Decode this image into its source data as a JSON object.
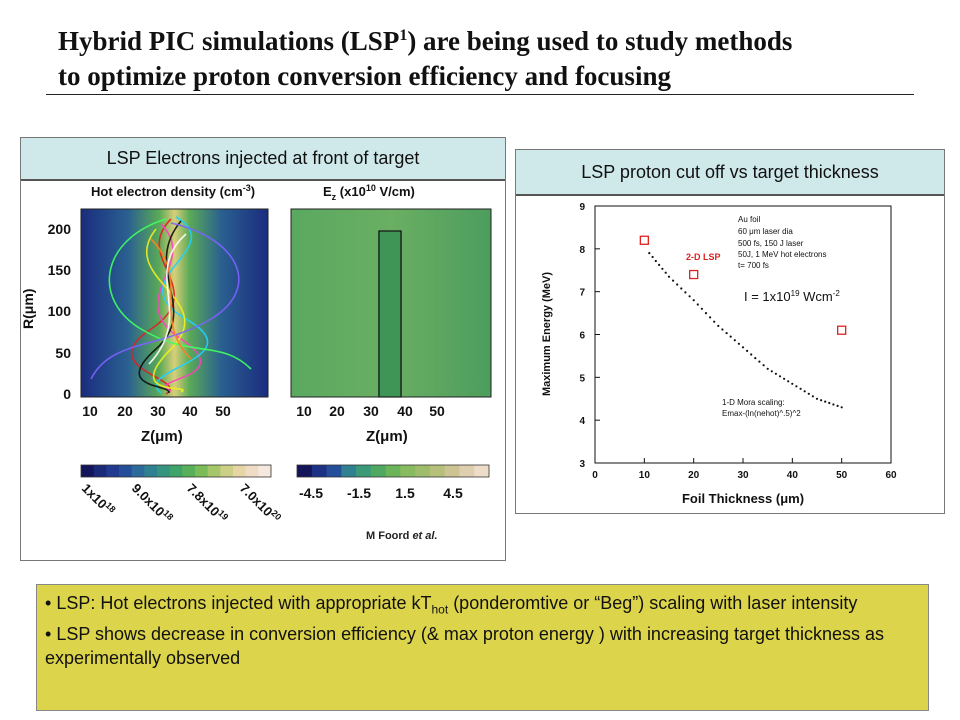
{
  "slide": {
    "title_line1_a": "Hybrid PIC simulations (LSP",
    "title_line1_sup": "1",
    "title_line1_b": ") are being used to study methods",
    "title_line2": "to optimize proton conversion efficiency and focusing",
    "left_panel_header": "LSP Electrons injected at front of target",
    "right_panel_header": "LSP proton cut off vs target thickness",
    "credit_a": "M Foord ",
    "credit_b": "et al.",
    "bullet1_a": "LSP: Hot electrons injected with appropriate kT",
    "bullet1_sub": "hot",
    "bullet1_b": " (ponderomtive or “Beg”) scaling with laser intensity",
    "bullet2": "LSP shows decrease in conversion efficiency (& max proton energy ) with increasing target thickness as experimentally observed"
  },
  "left_maps": {
    "map1_title_a": "Hot electron density (cm",
    "map1_title_sup": "-3",
    "map1_title_b": ")",
    "map2_title_a": "E",
    "map2_title_sub": "z",
    "map2_title_b": " (x10",
    "map2_title_sup": "10",
    "map2_title_c": " V/cm)",
    "ylabel_a": "R(",
    "ylabel_mu": "μ",
    "ylabel_b": "m)",
    "xlabel_a": "Z(",
    "xlabel_mu": "μ",
    "xlabel_b": "m)",
    "y_ticks": [
      "200",
      "150",
      "100",
      "50",
      "0"
    ],
    "x_ticks": [
      "10",
      "20",
      "30",
      "40",
      "50"
    ],
    "colorbar1_labels": [
      {
        "base": "1x10",
        "exp": "18"
      },
      {
        "base": "9.0x10",
        "exp": "18"
      },
      {
        "base": "7.8x10",
        "exp": "19"
      },
      {
        "base": "7.0x10",
        "exp": "20"
      }
    ],
    "colorbar2_labels": [
      "-4.5",
      "-1.5",
      "1.5",
      "4.5"
    ],
    "colorbar1_colors": [
      "#14145a",
      "#1a2a78",
      "#213a90",
      "#254e9a",
      "#2b6a9a",
      "#2f8090",
      "#35947e",
      "#3fa46a",
      "#58b05a",
      "#7cbc58",
      "#a6c66a",
      "#cccf86",
      "#e6d6a6",
      "#efdcc4",
      "#f5e8df"
    ],
    "colorbar2_colors": [
      "#14145a",
      "#1d3285",
      "#254e9a",
      "#2f8090",
      "#3a9a78",
      "#4ea860",
      "#6cb45a",
      "#88ba60",
      "#9ebc6a",
      "#b6c07a",
      "#cec493",
      "#e0cfae",
      "#ecdcc8"
    ]
  },
  "chart_data": {
    "type": "scatter",
    "title": "",
    "xlabel": "Foil Thickness (μm)",
    "ylabel": "Maximum Energy (MeV)",
    "xlim": [
      0,
      60
    ],
    "ylim": [
      3,
      9
    ],
    "x_ticks": [
      0,
      10,
      20,
      30,
      40,
      50,
      60
    ],
    "y_ticks": [
      3,
      4,
      5,
      6,
      7,
      8,
      9
    ],
    "grid": false,
    "series": [
      {
        "name": "2-D LSP",
        "marker": "open-square",
        "color": "#dd2222",
        "x": [
          10,
          20,
          50
        ],
        "y": [
          8.2,
          7.4,
          6.1
        ]
      },
      {
        "name": "1-D Mora scaling:",
        "marker": "dotted-line",
        "color": "#111111",
        "x": [
          11,
          15,
          20,
          25,
          30,
          35,
          40,
          45,
          50
        ],
        "y": [
          7.9,
          7.35,
          6.8,
          6.2,
          5.7,
          5.2,
          4.85,
          4.5,
          4.3
        ]
      }
    ],
    "annotations": {
      "legend_lines": [
        "Au foil",
        "60 μm laser dia",
        "500 fs, 150 J laser",
        "50J, 1 MeV hot electrons",
        "t= 700 fs"
      ],
      "lsp_label": "2-D LSP",
      "mora_line1": "1-D Mora scaling:",
      "mora_line2": "Emax-(ln(nehot)^.5)^2",
      "intensity_a": "I = 1x10",
      "intensity_sup": "19",
      "intensity_b": " Wcm",
      "intensity_sup2": "-2"
    }
  }
}
